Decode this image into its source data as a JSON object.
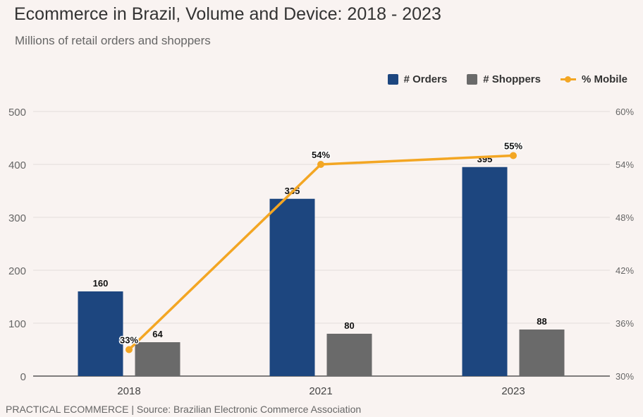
{
  "header": {
    "title": "Ecommerce in Brazil, Volume and Device: 2018 - 2023",
    "subtitle": "Millions of retail orders and shoppers"
  },
  "legend": {
    "orders": "# Orders",
    "shoppers": "# Shoppers",
    "mobile": "% Mobile"
  },
  "footer": {
    "source": "PRACTICAL ECOMMERCE | Source: Brazilian Electronic Commerce Association"
  },
  "colors": {
    "orders": "#1d467f",
    "shoppers": "#6a6a6a",
    "mobile": "#f3a623"
  },
  "chart_data": {
    "type": "bar",
    "title": "Ecommerce in Brazil, Volume and Device: 2018 - 2023",
    "subtitle": "Millions of retail orders and shoppers",
    "categories": [
      "2018",
      "2021",
      "2023"
    ],
    "series": [
      {
        "name": "# Orders",
        "type": "bar",
        "axis": "left",
        "values": [
          160,
          335,
          395
        ],
        "labels": [
          "160",
          "335",
          "395"
        ]
      },
      {
        "name": "# Shoppers",
        "type": "bar",
        "axis": "left",
        "values": [
          64,
          80,
          88
        ],
        "labels": [
          "64",
          "80",
          "88"
        ]
      },
      {
        "name": "% Mobile",
        "type": "line",
        "axis": "right",
        "values": [
          33,
          54,
          55
        ],
        "labels": [
          "33%",
          "54%",
          "55%"
        ]
      }
    ],
    "y_left": {
      "min": 0,
      "max": 500,
      "ticks": [
        "0",
        "100",
        "200",
        "300",
        "400",
        "500"
      ]
    },
    "y_right": {
      "min": 30,
      "max": 60,
      "ticks": [
        "30%",
        "36%",
        "42%",
        "48%",
        "54%",
        "60%"
      ]
    },
    "legend_position": "top-right",
    "grid": true
  }
}
